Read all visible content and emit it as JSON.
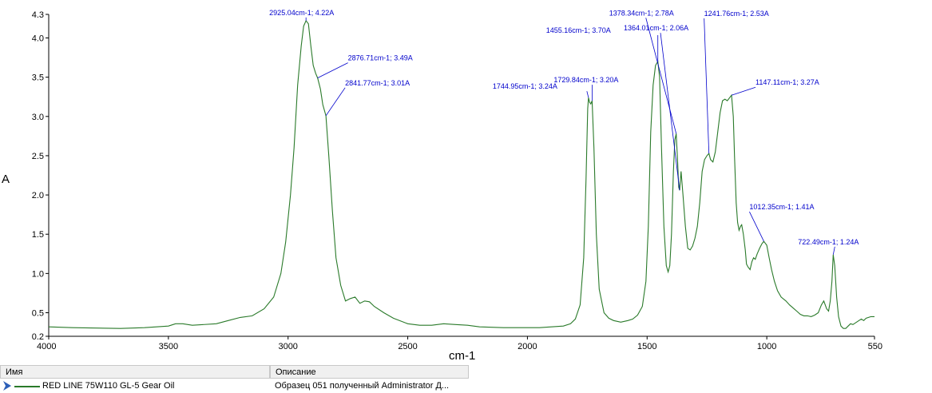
{
  "chart_data": {
    "type": "line",
    "xlabel": "cm-1",
    "ylabel": "A",
    "xlim": [
      4000,
      550
    ],
    "ylim": [
      0.2,
      4.3
    ],
    "x_ticks": [
      "4000",
      "3500",
      "3000",
      "2500",
      "2000",
      "1500",
      "1000",
      "550"
    ],
    "y_ticks": [
      "0.2",
      "0.5",
      "1.0",
      "1.5",
      "2.0",
      "2.5",
      "3.0",
      "3.5",
      "4.0",
      "4.3"
    ],
    "series": [
      {
        "name": "RED LINE 75W110 GL-5 Gear Oil",
        "color": "#2a7a2a",
        "points": [
          [
            4000,
            0.32
          ],
          [
            3900,
            0.31
          ],
          [
            3800,
            0.305
          ],
          [
            3700,
            0.3
          ],
          [
            3600,
            0.31
          ],
          [
            3550,
            0.32
          ],
          [
            3500,
            0.33
          ],
          [
            3470,
            0.36
          ],
          [
            3440,
            0.36
          ],
          [
            3400,
            0.34
          ],
          [
            3300,
            0.36
          ],
          [
            3250,
            0.4
          ],
          [
            3200,
            0.44
          ],
          [
            3150,
            0.46
          ],
          [
            3100,
            0.55
          ],
          [
            3060,
            0.7
          ],
          [
            3030,
            1.0
          ],
          [
            3010,
            1.4
          ],
          [
            2990,
            2.0
          ],
          [
            2975,
            2.6
          ],
          [
            2960,
            3.4
          ],
          [
            2945,
            3.9
          ],
          [
            2935,
            4.15
          ],
          [
            2925,
            4.22
          ],
          [
            2915,
            4.18
          ],
          [
            2905,
            3.9
          ],
          [
            2895,
            3.65
          ],
          [
            2885,
            3.55
          ],
          [
            2876.71,
            3.49
          ],
          [
            2865,
            3.35
          ],
          [
            2855,
            3.15
          ],
          [
            2841.77,
            3.01
          ],
          [
            2830,
            2.5
          ],
          [
            2815,
            1.8
          ],
          [
            2800,
            1.2
          ],
          [
            2780,
            0.85
          ],
          [
            2760,
            0.65
          ],
          [
            2740,
            0.68
          ],
          [
            2720,
            0.7
          ],
          [
            2700,
            0.62
          ],
          [
            2680,
            0.65
          ],
          [
            2660,
            0.64
          ],
          [
            2640,
            0.58
          ],
          [
            2600,
            0.5
          ],
          [
            2560,
            0.43
          ],
          [
            2500,
            0.36
          ],
          [
            2450,
            0.34
          ],
          [
            2400,
            0.34
          ],
          [
            2350,
            0.36
          ],
          [
            2300,
            0.35
          ],
          [
            2250,
            0.34
          ],
          [
            2200,
            0.32
          ],
          [
            2100,
            0.31
          ],
          [
            2000,
            0.31
          ],
          [
            1950,
            0.31
          ],
          [
            1900,
            0.32
          ],
          [
            1850,
            0.33
          ],
          [
            1820,
            0.36
          ],
          [
            1800,
            0.42
          ],
          [
            1780,
            0.6
          ],
          [
            1765,
            1.2
          ],
          [
            1755,
            2.2
          ],
          [
            1748,
            3.1
          ],
          [
            1744.95,
            3.24
          ],
          [
            1740,
            3.18
          ],
          [
            1735,
            3.16
          ],
          [
            1729.84,
            3.2
          ],
          [
            1722,
            2.6
          ],
          [
            1712,
            1.5
          ],
          [
            1700,
            0.8
          ],
          [
            1680,
            0.5
          ],
          [
            1660,
            0.43
          ],
          [
            1640,
            0.4
          ],
          [
            1610,
            0.38
          ],
          [
            1580,
            0.4
          ],
          [
            1560,
            0.42
          ],
          [
            1540,
            0.47
          ],
          [
            1520,
            0.58
          ],
          [
            1505,
            0.9
          ],
          [
            1495,
            1.6
          ],
          [
            1485,
            2.8
          ],
          [
            1475,
            3.4
          ],
          [
            1465,
            3.65
          ],
          [
            1455.16,
            3.7
          ],
          [
            1448,
            3.5
          ],
          [
            1440,
            2.6
          ],
          [
            1430,
            1.6
          ],
          [
            1420,
            1.1
          ],
          [
            1412,
            1.02
          ],
          [
            1405,
            1.1
          ],
          [
            1398,
            1.5
          ],
          [
            1390,
            2.3
          ],
          [
            1384,
            2.7
          ],
          [
            1378.34,
            2.78
          ],
          [
            1372,
            2.4
          ],
          [
            1368,
            2.1
          ],
          [
            1364.01,
            2.06
          ],
          [
            1358,
            2.3
          ],
          [
            1350,
            2.0
          ],
          [
            1340,
            1.6
          ],
          [
            1330,
            1.32
          ],
          [
            1320,
            1.3
          ],
          [
            1310,
            1.35
          ],
          [
            1300,
            1.45
          ],
          [
            1290,
            1.6
          ],
          [
            1280,
            1.9
          ],
          [
            1270,
            2.3
          ],
          [
            1260,
            2.45
          ],
          [
            1250,
            2.5
          ],
          [
            1241.76,
            2.53
          ],
          [
            1235,
            2.45
          ],
          [
            1225,
            2.42
          ],
          [
            1215,
            2.55
          ],
          [
            1205,
            2.8
          ],
          [
            1195,
            3.05
          ],
          [
            1185,
            3.2
          ],
          [
            1175,
            3.22
          ],
          [
            1165,
            3.2
          ],
          [
            1155,
            3.24
          ],
          [
            1147.11,
            3.27
          ],
          [
            1140,
            3.0
          ],
          [
            1135,
            2.5
          ],
          [
            1128,
            1.9
          ],
          [
            1122,
            1.65
          ],
          [
            1116,
            1.55
          ],
          [
            1110,
            1.6
          ],
          [
            1105,
            1.62
          ],
          [
            1098,
            1.5
          ],
          [
            1090,
            1.3
          ],
          [
            1085,
            1.12
          ],
          [
            1078,
            1.08
          ],
          [
            1070,
            1.05
          ],
          [
            1062,
            1.15
          ],
          [
            1055,
            1.2
          ],
          [
            1048,
            1.18
          ],
          [
            1040,
            1.25
          ],
          [
            1030,
            1.32
          ],
          [
            1020,
            1.38
          ],
          [
            1012.35,
            1.41
          ],
          [
            1000,
            1.36
          ],
          [
            990,
            1.2
          ],
          [
            980,
            1.05
          ],
          [
            968,
            0.9
          ],
          [
            955,
            0.78
          ],
          [
            940,
            0.7
          ],
          [
            920,
            0.65
          ],
          [
            905,
            0.6
          ],
          [
            890,
            0.56
          ],
          [
            875,
            0.52
          ],
          [
            860,
            0.48
          ],
          [
            845,
            0.46
          ],
          [
            830,
            0.46
          ],
          [
            815,
            0.45
          ],
          [
            800,
            0.47
          ],
          [
            785,
            0.5
          ],
          [
            772,
            0.6
          ],
          [
            762,
            0.65
          ],
          [
            750,
            0.55
          ],
          [
            742,
            0.52
          ],
          [
            735,
            0.65
          ],
          [
            728,
            0.9
          ],
          [
            722.49,
            1.24
          ],
          [
            716,
            1.1
          ],
          [
            708,
            0.7
          ],
          [
            700,
            0.45
          ],
          [
            690,
            0.33
          ],
          [
            680,
            0.3
          ],
          [
            670,
            0.3
          ],
          [
            660,
            0.33
          ],
          [
            650,
            0.36
          ],
          [
            640,
            0.35
          ],
          [
            625,
            0.38
          ],
          [
            615,
            0.4
          ],
          [
            605,
            0.42
          ],
          [
            595,
            0.4
          ],
          [
            585,
            0.43
          ],
          [
            575,
            0.44
          ],
          [
            565,
            0.45
          ],
          [
            555,
            0.45
          ],
          [
            550,
            0.45
          ]
        ]
      }
    ],
    "annotations": [
      {
        "text": "2925.04cm-1; 4.22A",
        "x": 2925.04,
        "y": 4.22
      },
      {
        "text": "2876.71cm-1; 3.49A",
        "x": 2876.71,
        "y": 3.49
      },
      {
        "text": "2841.77cm-1; 3.01A",
        "x": 2841.77,
        "y": 3.01
      },
      {
        "text": "1744.95cm-1; 3.24A",
        "x": 1744.95,
        "y": 3.24
      },
      {
        "text": "1729.84cm-1; 3.20A",
        "x": 1729.84,
        "y": 3.2
      },
      {
        "text": "1455.16cm-1; 3.70A",
        "x": 1455.16,
        "y": 3.7
      },
      {
        "text": "1378.34cm-1; 2.78A",
        "x": 1378.34,
        "y": 2.78
      },
      {
        "text": "1364.01cm-1; 2.06A",
        "x": 1364.01,
        "y": 2.06
      },
      {
        "text": "1241.76cm-1; 2.53A",
        "x": 1241.76,
        "y": 2.53
      },
      {
        "text": "1147.11cm-1; 3.27A",
        "x": 1147.11,
        "y": 3.27
      },
      {
        "text": "1012.35cm-1; 1.41A",
        "x": 1012.35,
        "y": 1.41
      },
      {
        "text": "722.49cm-1; 1.24A",
        "x": 722.49,
        "y": 1.24
      }
    ],
    "grid": false
  },
  "legend": {
    "col_name_header": "Имя",
    "col_desc_header": "Описание",
    "rows": [
      {
        "name": "RED LINE 75W110 GL-5 Gear Oil",
        "description": "Образец 051 полученный Administrator Д..."
      }
    ]
  }
}
